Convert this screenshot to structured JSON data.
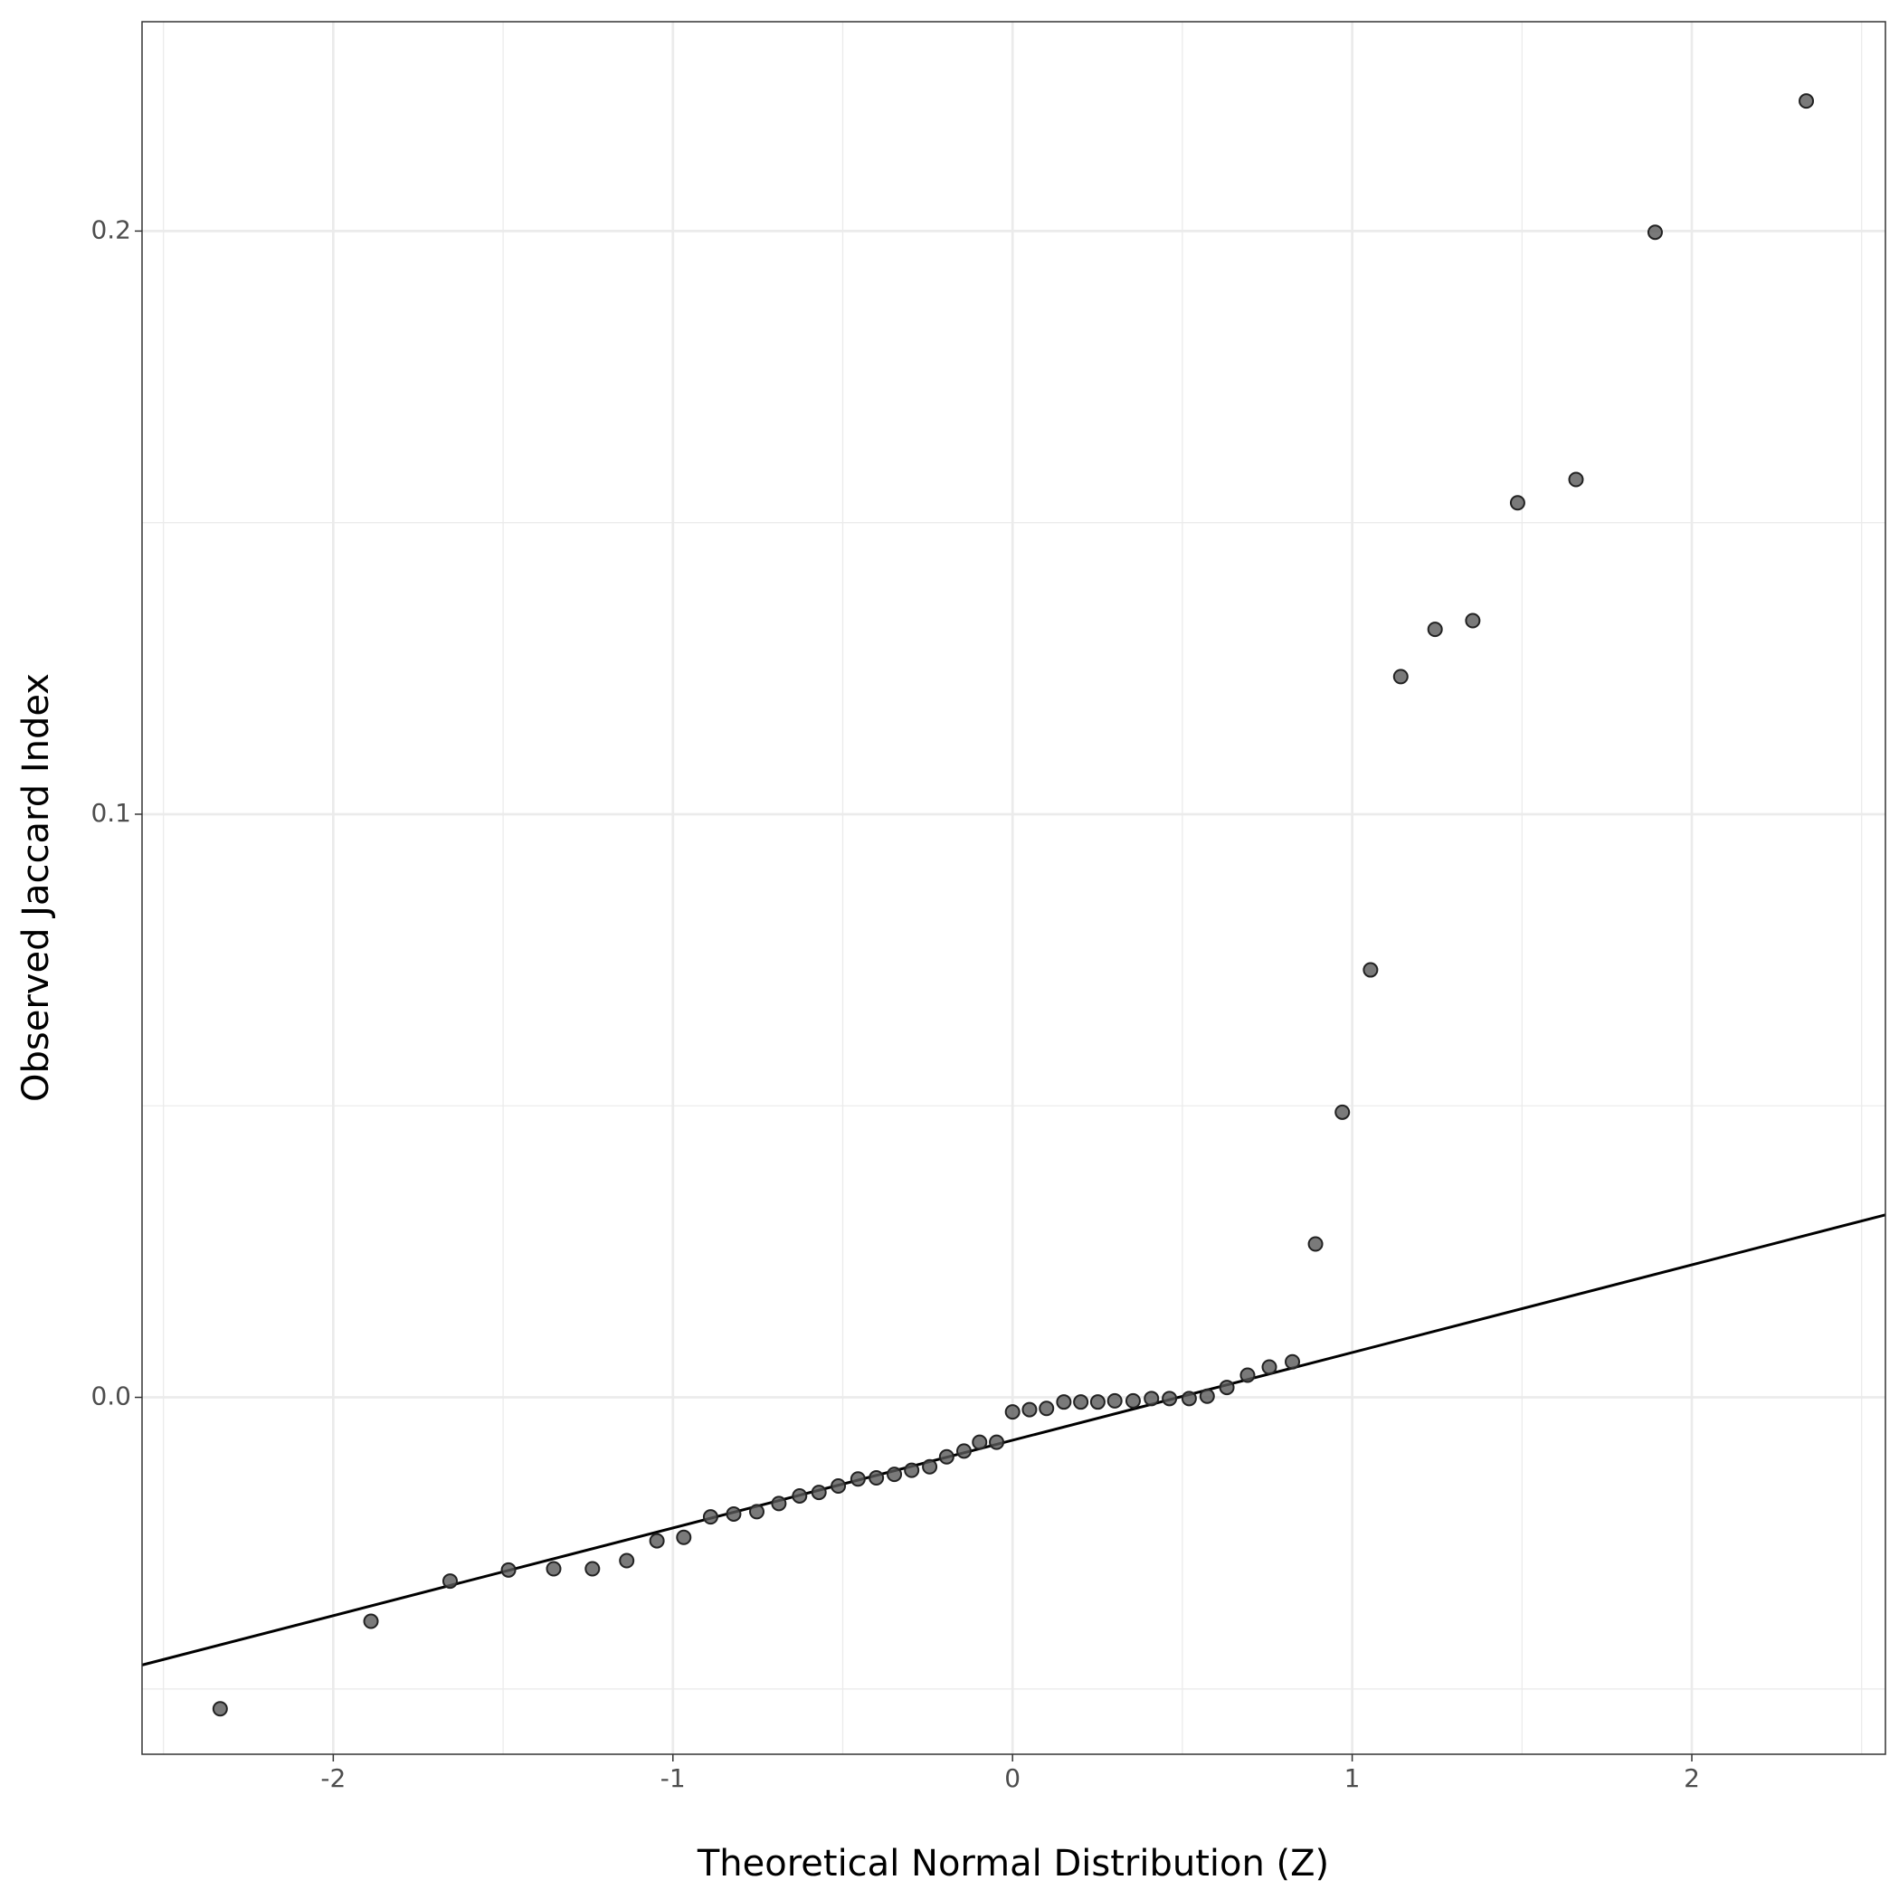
{
  "chart_data": {
    "type": "scatter",
    "x_label": "Theoretical Normal Distribution (Z)",
    "y_label": "Observed Jaccard Index",
    "xlim": [
      -2.563,
      2.57
    ],
    "ylim": [
      -0.0612,
      0.2359
    ],
    "xticks": [
      -2,
      -1,
      0,
      1,
      2
    ],
    "yticks": [
      {
        "value": 0,
        "label": "0.0"
      },
      0.1,
      0.2
    ],
    "minor_xticks": [
      -2.5,
      -1.5,
      -0.5,
      0.5,
      1.5,
      2.5
    ],
    "minor_yticks": [
      -0.05,
      0.05,
      0.15
    ],
    "grid": true,
    "color": "#595959",
    "x": [
      -2.333,
      -1.889,
      -1.656,
      -1.484,
      -1.351,
      -1.237,
      -1.136,
      -1.047,
      -0.968,
      -0.889,
      -0.821,
      -0.753,
      -0.688,
      -0.627,
      -0.57,
      -0.513,
      -0.455,
      -0.401,
      -0.348,
      -0.297,
      -0.244,
      -0.194,
      -0.143,
      -0.097,
      -0.047,
      0,
      0.05,
      0.1,
      0.151,
      0.201,
      0.251,
      0.301,
      0.355,
      0.409,
      0.462,
      0.52,
      0.573,
      0.631,
      0.692,
      0.756,
      0.824,
      0.892,
      0.971,
      1.054,
      1.143,
      1.244,
      1.355,
      1.487,
      1.659,
      1.892,
      2.337
    ],
    "values": [
      -0.0534,
      -0.0384,
      -0.0315,
      -0.0296,
      -0.0294,
      -0.0294,
      -0.028,
      -0.0246,
      -0.024,
      -0.0205,
      -0.02,
      -0.0196,
      -0.0182,
      -0.0169,
      -0.0163,
      -0.0152,
      -0.014,
      -0.0138,
      -0.0132,
      -0.0125,
      -0.0119,
      -0.0102,
      -0.0092,
      -0.0077,
      -0.0077,
      -0.0025,
      -0.0021,
      -0.0019,
      -0.0008,
      -0.0008,
      -0.0008,
      -0.0006,
      -0.0006,
      -0.0002,
      -0.0002,
      -0.0002,
      0.0002,
      0.0017,
      0.0038,
      0.0052,
      0.0061,
      0.0263,
      0.0489,
      0.0733,
      0.1236,
      0.1317,
      0.1332,
      0.1534,
      0.1574,
      0.1998,
      0.2223
    ],
    "qq_line": {
      "x": [
        -2.563,
        2.57
      ],
      "y": [
        -0.0459,
        0.0313
      ],
      "color": "#000000"
    }
  }
}
